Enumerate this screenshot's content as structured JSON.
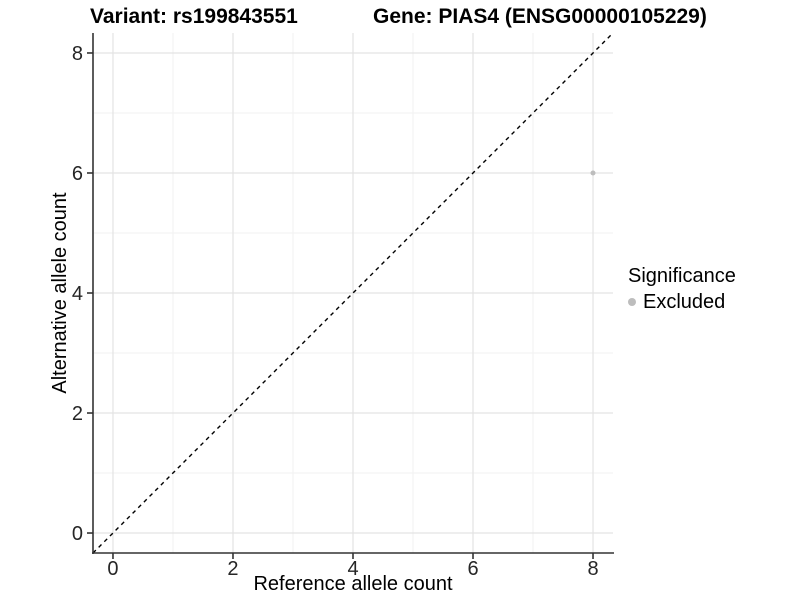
{
  "titles": {
    "variant": "Variant: rs199843551",
    "gene": "Gene: PIAS4 (ENSG00000105229)"
  },
  "chart_data": {
    "type": "scatter",
    "title_variant": "Variant: rs199843551",
    "title_gene": "Gene: PIAS4 (ENSG00000105229)",
    "xlabel": "Reference allele count",
    "ylabel": "Alternative allele count",
    "x_ticks": [
      0,
      2,
      4,
      6,
      8
    ],
    "y_ticks": [
      0,
      2,
      4,
      6,
      8
    ],
    "x_minor_ticks": [
      1,
      3,
      5,
      7
    ],
    "y_minor_ticks": [
      1,
      3,
      5,
      7
    ],
    "xlim": [
      -0.333,
      8.333
    ],
    "ylim": [
      -0.333,
      8.333
    ],
    "grid": "major_and_minor",
    "identity_line": {
      "slope": 1,
      "intercept": 0,
      "style": "dashed"
    },
    "series": [
      {
        "name": "Excluded",
        "color": "#bdbdbd",
        "points": [
          {
            "x": 8,
            "y": 6
          }
        ]
      }
    ],
    "legend": {
      "title": "Significance",
      "position": "right",
      "entries": [
        {
          "label": "Excluded",
          "color": "#bdbdbd",
          "marker": "circle"
        }
      ]
    }
  },
  "colors": {
    "background": "#ffffff",
    "grid_major": "#e3e3e3",
    "grid_minor": "#f2f2f2",
    "axis_line": "#333333",
    "tick_mark": "#333333",
    "tick_label": "#262626",
    "text": "#000000",
    "point": "#bdbdbd",
    "identity_line": "#000000"
  }
}
